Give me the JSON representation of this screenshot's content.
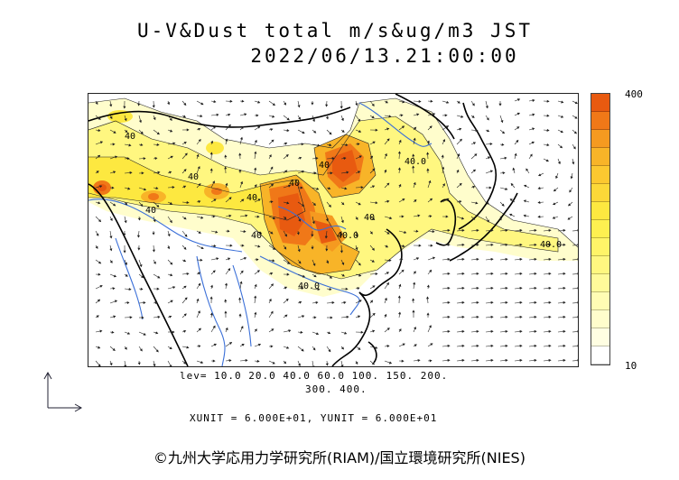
{
  "title_line1": "U-V&Dust total m/s&ug/m3 JST",
  "title_line2": "2022/06/13.21:00:00",
  "colorbar": {
    "max_label": "400",
    "min_label": "10",
    "colors": [
      "#e85a10",
      "#f07818",
      "#f59a20",
      "#f8b428",
      "#fcc830",
      "#fcd838",
      "#fde840",
      "#fef050",
      "#fff468",
      "#fff780",
      "#fffa9a",
      "#fffcb4",
      "#fffdcc",
      "#fffee2",
      "#ffffff"
    ]
  },
  "levels_line1": "lev= 10.0 20.0 40.0 60.0 100. 150. 200.",
  "levels_line2": "300. 400.",
  "units": "XUNIT = 6.000E+01, YUNIT = 6.000E+01",
  "credit": "©九州大学応用力学研究所(RIAM)/国立環境研究所(NIES)",
  "contour_labels": [
    "40",
    "40",
    "40",
    "40",
    "40",
    "40",
    "40",
    "40.0",
    "40.0",
    "40.0",
    "40.0",
    "40"
  ]
}
